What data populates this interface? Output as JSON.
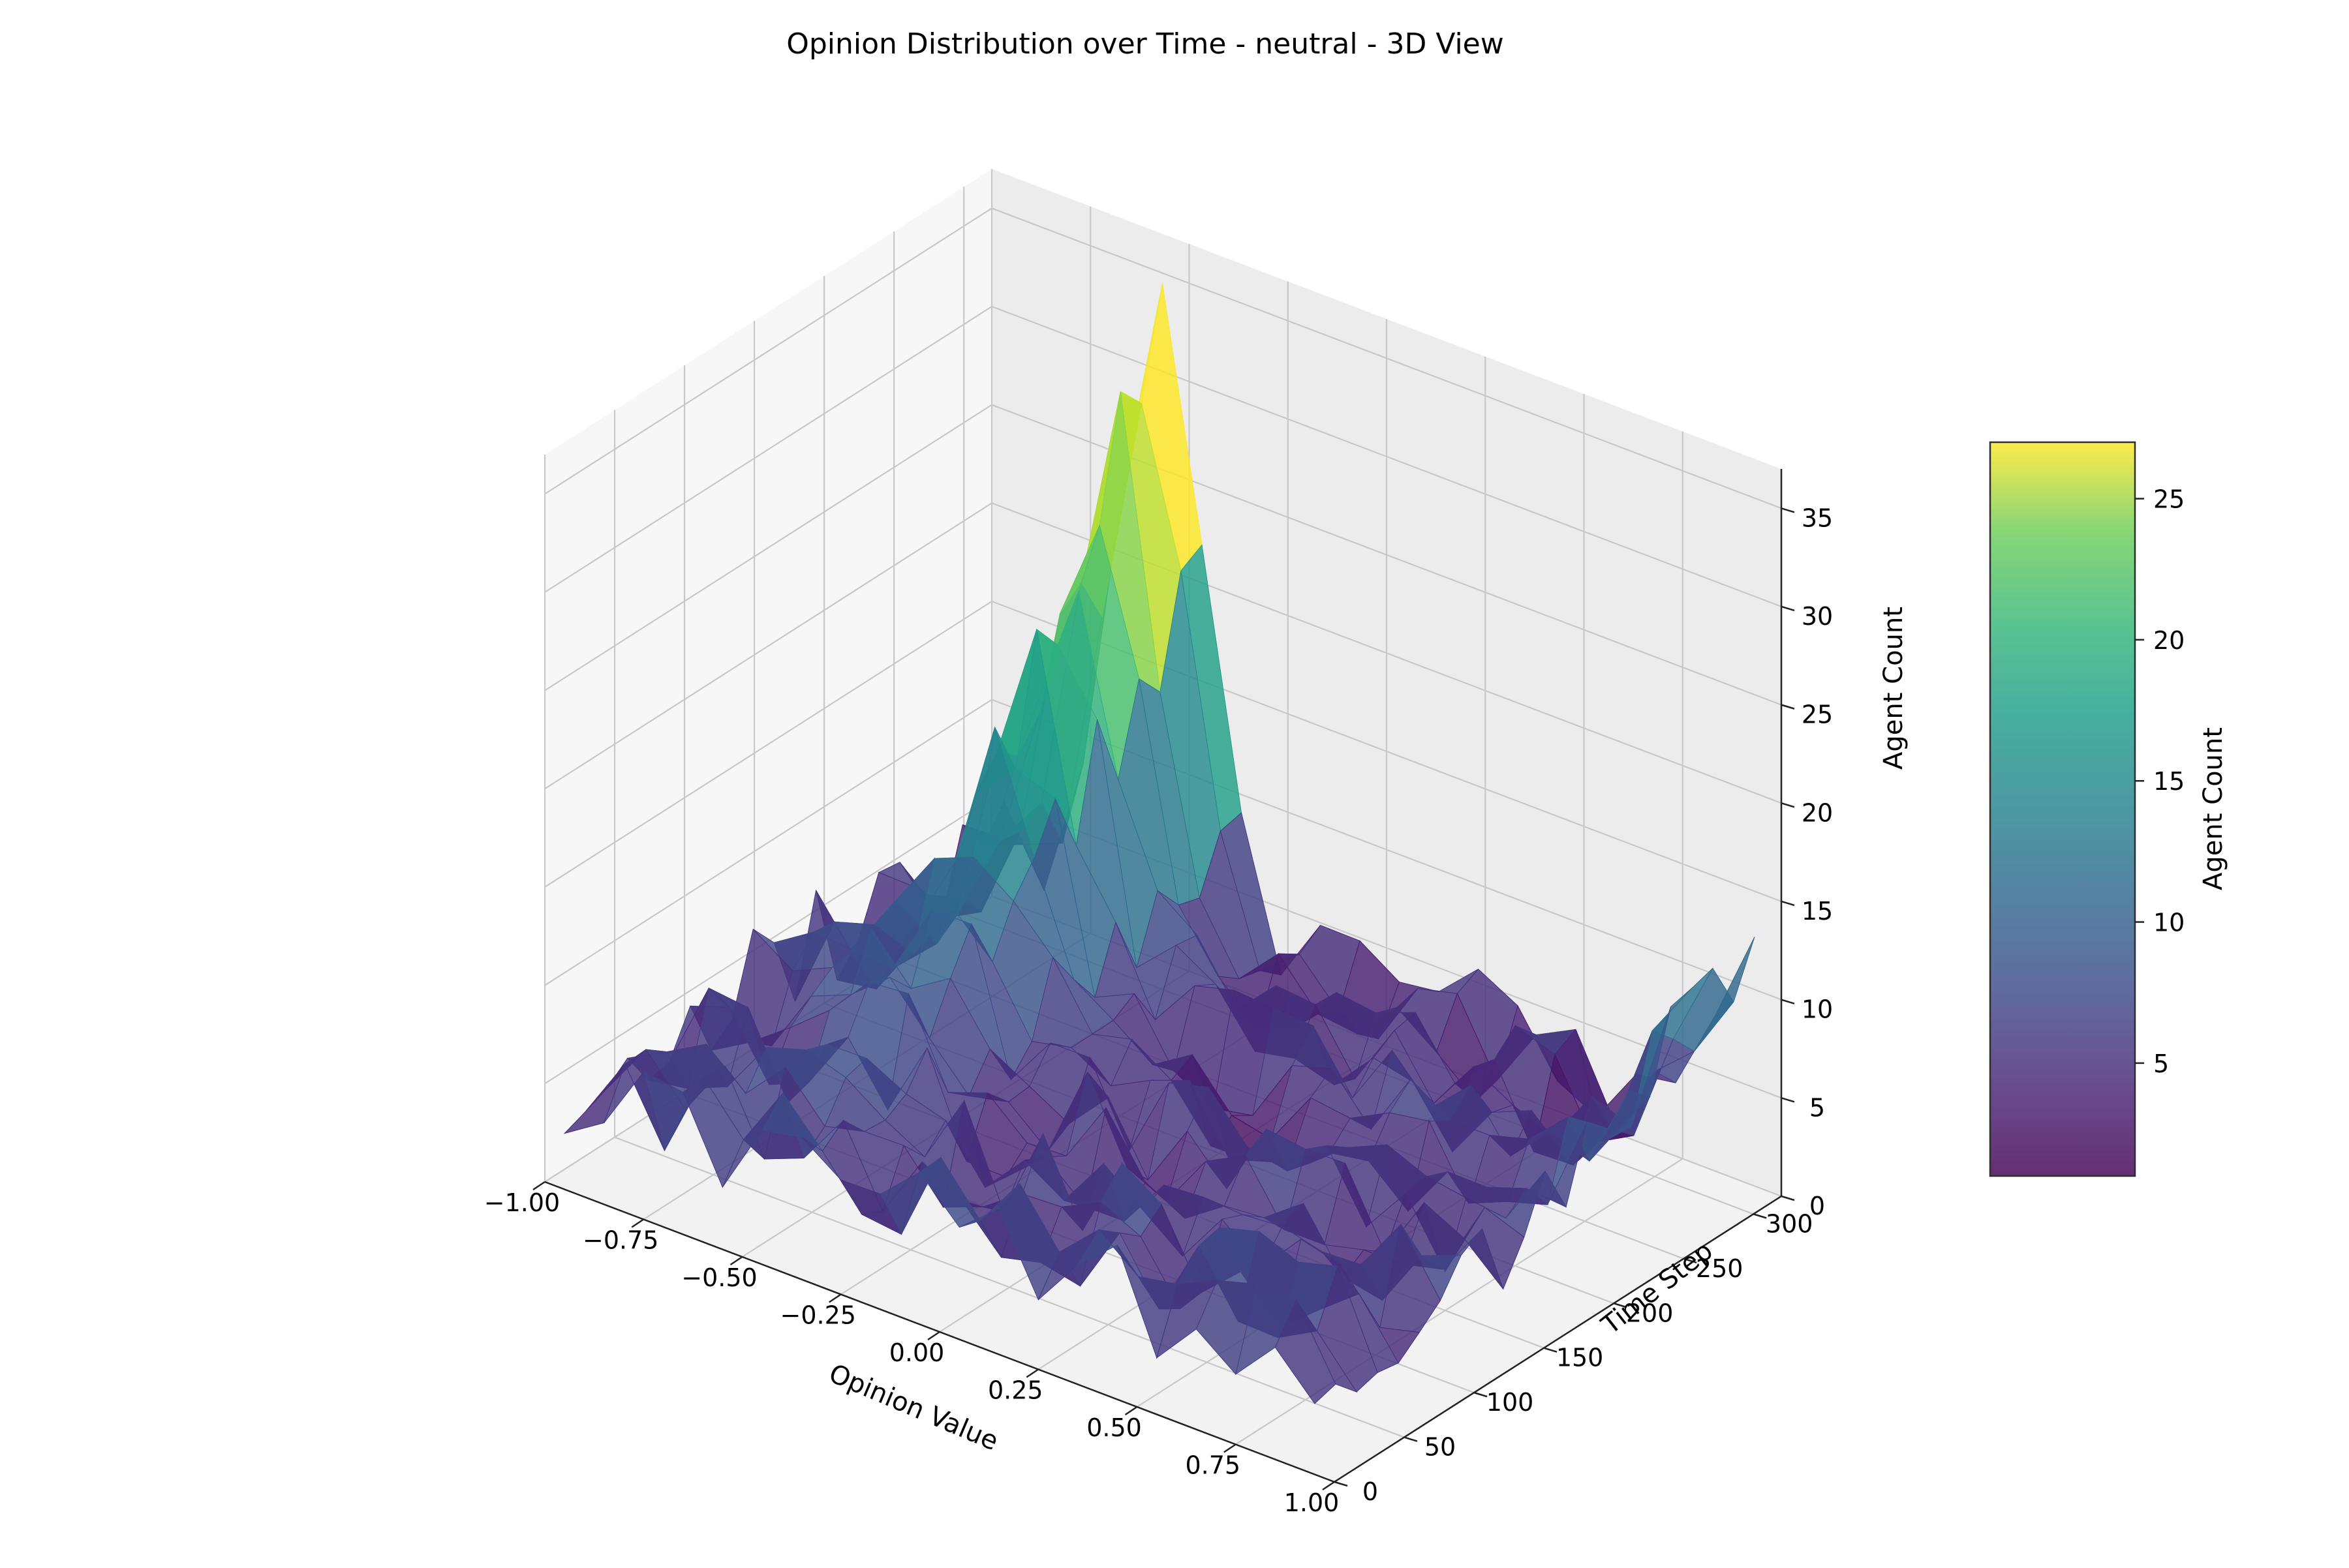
{
  "chart_data": {
    "type": "surface3d",
    "title": "Opinion Distribution over Time - neutral - 3D View",
    "xlabel": "Opinion Value",
    "ylabel": "Time Step",
    "zlabel": "Agent Count",
    "xlim": [
      -1.0,
      1.0
    ],
    "ylim": [
      0,
      320
    ],
    "zlim": [
      0,
      37
    ],
    "xticks": [
      "−1.00",
      "−0.75",
      "−0.50",
      "−0.25",
      "0.00",
      "0.25",
      "0.50",
      "0.75",
      "1.00"
    ],
    "yticks": [
      "0",
      "50",
      "100",
      "150",
      "200",
      "250",
      "300"
    ],
    "zticks": [
      "0",
      "5",
      "10",
      "15",
      "20",
      "25",
      "30",
      "35"
    ],
    "colormap": "viridis",
    "colorbar": {
      "label": "Agent Count",
      "range": [
        1,
        27
      ],
      "ticks": [
        "5",
        "10",
        "15",
        "20",
        "25"
      ]
    },
    "surface": {
      "opinion_grid": [
        -0.95,
        -0.85,
        -0.75,
        -0.65,
        -0.55,
        -0.45,
        -0.35,
        -0.25,
        -0.15,
        -0.05,
        0.05,
        0.15,
        0.25,
        0.35,
        0.45,
        0.55,
        0.65,
        0.75,
        0.85,
        0.95
      ],
      "time_grid": [
        0,
        15,
        30,
        45,
        60,
        75,
        90,
        105,
        120,
        135,
        150,
        165,
        180,
        195,
        210,
        225,
        240,
        255,
        270,
        285,
        300,
        315
      ],
      "description_of_peak": "",
      "peak": {
        "opinion": -0.55,
        "time": 300,
        "count": 36
      },
      "edge_rise": {
        "opinion": 0.95,
        "time": 300,
        "count": 14
      }
    }
  }
}
